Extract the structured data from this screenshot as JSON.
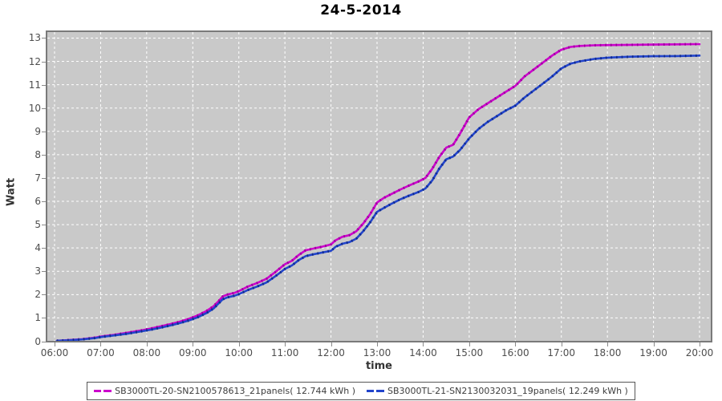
{
  "title": "24-5-2014",
  "axes": {
    "x_label": "time",
    "y_label": "Watt",
    "x_ticks": [
      "06:00",
      "07:00",
      "08:00",
      "09:00",
      "10:00",
      "11:00",
      "12:00",
      "13:00",
      "14:00",
      "15:00",
      "16:00",
      "17:00",
      "18:00",
      "19:00",
      "20:00"
    ],
    "y_ticks": [
      "0",
      "1",
      "2",
      "3",
      "4",
      "5",
      "6",
      "7",
      "8",
      "9",
      "10",
      "11",
      "12",
      "13"
    ]
  },
  "colors": {
    "plot_background": "#c9c9c9",
    "plot_border": "#7a7a7a",
    "gridline": "#ffffff",
    "tick": "#8a8a8a",
    "tick_label": "#4d4d4d",
    "series1": "#cc00cc",
    "series1_dark": "#990099",
    "series2": "#2244cc",
    "series2_dark": "#112a88"
  },
  "legend": {
    "items": [
      {
        "label": "SB3000TL-20-SN2100578613_21panels( 12.744 kWh )",
        "color": "#cc00cc"
      },
      {
        "label": "SB3000TL-21-SN2130032031_19panels( 12.249 kWh )",
        "color": "#2244cc"
      }
    ]
  },
  "chart_data": {
    "type": "line",
    "title": "24-5-2014",
    "xlabel": "time",
    "ylabel": "Watt",
    "x_unit": "hour-of-day",
    "xlim": [
      6,
      20
    ],
    "ylim": [
      0,
      13
    ],
    "grid": true,
    "grid_style": "white-dashed-on-gray",
    "legend_position": "bottom-center",
    "series": [
      {
        "name": "SB3000TL-20-SN2100578613_21panels( 12.744 kWh )",
        "color": "#cc00cc",
        "total_kwh_shown": "12.744 kWh",
        "points": [
          [
            6.05,
            0.02
          ],
          [
            6.3,
            0.05
          ],
          [
            6.6,
            0.09
          ],
          [
            6.9,
            0.16
          ],
          [
            7.0,
            0.2
          ],
          [
            7.3,
            0.28
          ],
          [
            7.6,
            0.37
          ],
          [
            7.9,
            0.47
          ],
          [
            8.1,
            0.55
          ],
          [
            8.3,
            0.64
          ],
          [
            8.5,
            0.73
          ],
          [
            8.7,
            0.83
          ],
          [
            8.9,
            0.95
          ],
          [
            9.1,
            1.1
          ],
          [
            9.3,
            1.3
          ],
          [
            9.45,
            1.5
          ],
          [
            9.55,
            1.7
          ],
          [
            9.65,
            1.92
          ],
          [
            9.75,
            2.0
          ],
          [
            9.9,
            2.07
          ],
          [
            10.0,
            2.15
          ],
          [
            10.2,
            2.35
          ],
          [
            10.4,
            2.5
          ],
          [
            10.6,
            2.68
          ],
          [
            10.8,
            2.98
          ],
          [
            11.0,
            3.3
          ],
          [
            11.15,
            3.45
          ],
          [
            11.3,
            3.7
          ],
          [
            11.45,
            3.9
          ],
          [
            11.6,
            3.97
          ],
          [
            11.8,
            4.05
          ],
          [
            12.0,
            4.15
          ],
          [
            12.1,
            4.33
          ],
          [
            12.25,
            4.48
          ],
          [
            12.4,
            4.55
          ],
          [
            12.55,
            4.72
          ],
          [
            12.7,
            5.05
          ],
          [
            12.85,
            5.45
          ],
          [
            13.0,
            5.95
          ],
          [
            13.15,
            6.15
          ],
          [
            13.3,
            6.3
          ],
          [
            13.5,
            6.5
          ],
          [
            13.7,
            6.68
          ],
          [
            13.9,
            6.85
          ],
          [
            14.05,
            7.0
          ],
          [
            14.2,
            7.4
          ],
          [
            14.35,
            7.9
          ],
          [
            14.5,
            8.3
          ],
          [
            14.65,
            8.42
          ],
          [
            14.8,
            8.9
          ],
          [
            15.0,
            9.6
          ],
          [
            15.2,
            9.95
          ],
          [
            15.4,
            10.2
          ],
          [
            15.6,
            10.45
          ],
          [
            15.8,
            10.7
          ],
          [
            16.0,
            10.95
          ],
          [
            16.2,
            11.35
          ],
          [
            16.4,
            11.65
          ],
          [
            16.6,
            11.95
          ],
          [
            16.8,
            12.25
          ],
          [
            17.0,
            12.5
          ],
          [
            17.2,
            12.62
          ],
          [
            17.4,
            12.66
          ],
          [
            17.7,
            12.69
          ],
          [
            18.0,
            12.7
          ],
          [
            18.5,
            12.71
          ],
          [
            19.0,
            12.72
          ],
          [
            19.5,
            12.73
          ],
          [
            20.0,
            12.74
          ]
        ]
      },
      {
        "name": "SB3000TL-21-SN2130032031_19panels( 12.249 kWh )",
        "color": "#2244cc",
        "total_kwh_shown": "12.249 kWh",
        "points": [
          [
            6.05,
            0.02
          ],
          [
            6.3,
            0.04
          ],
          [
            6.6,
            0.08
          ],
          [
            6.9,
            0.14
          ],
          [
            7.0,
            0.18
          ],
          [
            7.3,
            0.25
          ],
          [
            7.6,
            0.33
          ],
          [
            7.9,
            0.43
          ],
          [
            8.1,
            0.5
          ],
          [
            8.3,
            0.58
          ],
          [
            8.5,
            0.67
          ],
          [
            8.7,
            0.77
          ],
          [
            8.9,
            0.88
          ],
          [
            9.1,
            1.02
          ],
          [
            9.3,
            1.21
          ],
          [
            9.45,
            1.4
          ],
          [
            9.55,
            1.6
          ],
          [
            9.65,
            1.8
          ],
          [
            9.75,
            1.88
          ],
          [
            9.9,
            1.95
          ],
          [
            10.0,
            2.02
          ],
          [
            10.2,
            2.2
          ],
          [
            10.4,
            2.35
          ],
          [
            10.6,
            2.52
          ],
          [
            10.8,
            2.8
          ],
          [
            11.0,
            3.1
          ],
          [
            11.15,
            3.25
          ],
          [
            11.3,
            3.48
          ],
          [
            11.45,
            3.65
          ],
          [
            11.6,
            3.72
          ],
          [
            11.8,
            3.8
          ],
          [
            12.0,
            3.88
          ],
          [
            12.1,
            4.05
          ],
          [
            12.25,
            4.18
          ],
          [
            12.4,
            4.25
          ],
          [
            12.55,
            4.4
          ],
          [
            12.7,
            4.72
          ],
          [
            12.85,
            5.1
          ],
          [
            13.0,
            5.55
          ],
          [
            13.15,
            5.72
          ],
          [
            13.3,
            5.88
          ],
          [
            13.5,
            6.08
          ],
          [
            13.7,
            6.25
          ],
          [
            13.9,
            6.4
          ],
          [
            14.05,
            6.55
          ],
          [
            14.2,
            6.9
          ],
          [
            14.35,
            7.4
          ],
          [
            14.5,
            7.8
          ],
          [
            14.65,
            7.92
          ],
          [
            14.8,
            8.2
          ],
          [
            15.0,
            8.7
          ],
          [
            15.2,
            9.1
          ],
          [
            15.4,
            9.4
          ],
          [
            15.6,
            9.65
          ],
          [
            15.8,
            9.9
          ],
          [
            16.0,
            10.1
          ],
          [
            16.2,
            10.45
          ],
          [
            16.4,
            10.75
          ],
          [
            16.6,
            11.05
          ],
          [
            16.8,
            11.35
          ],
          [
            17.0,
            11.7
          ],
          [
            17.2,
            11.9
          ],
          [
            17.4,
            12.0
          ],
          [
            17.7,
            12.1
          ],
          [
            18.0,
            12.16
          ],
          [
            18.5,
            12.2
          ],
          [
            19.0,
            12.22
          ],
          [
            19.5,
            12.23
          ],
          [
            20.0,
            12.25
          ]
        ]
      }
    ]
  }
}
